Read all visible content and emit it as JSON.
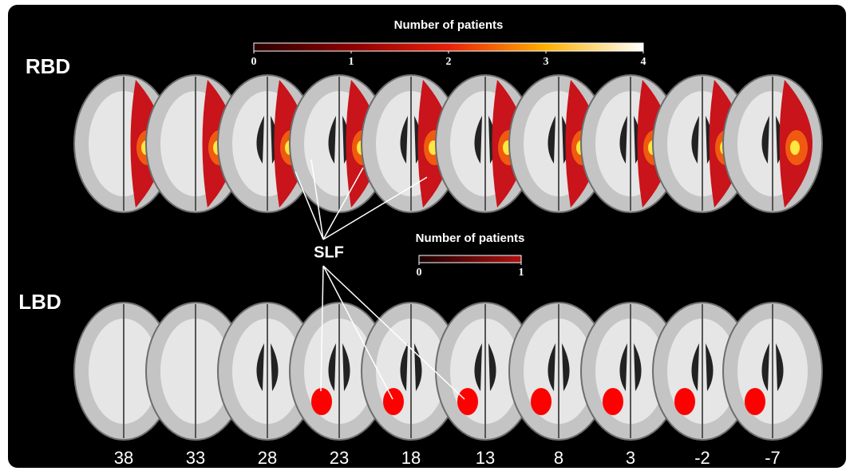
{
  "labels": {
    "rbd": "RBD",
    "lbd": "LBD",
    "slf": "SLF"
  },
  "colorbars": [
    {
      "title": "Number of patients",
      "lim": [
        0,
        4
      ],
      "ticks": [
        0,
        1,
        2,
        3,
        4
      ]
    },
    {
      "title": "Number of patients",
      "lim": [
        0,
        1
      ],
      "ticks": [
        0,
        1
      ]
    }
  ],
  "slices": [
    38,
    33,
    28,
    23,
    18,
    13,
    8,
    3,
    -2,
    -7
  ]
}
